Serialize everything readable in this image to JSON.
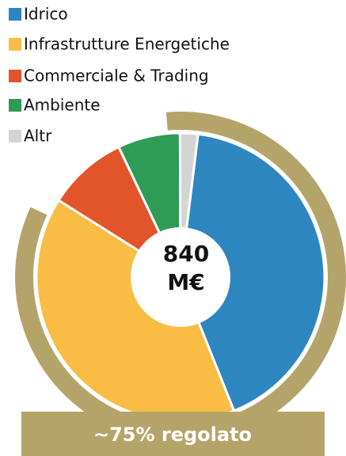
{
  "chart_data": {
    "type": "donut",
    "categories": [
      "Idrico",
      "Infrastrutture Energetiche",
      "Commerciale & Trading",
      "Ambiente",
      "Altr"
    ],
    "values": [
      42,
      40,
      9,
      7,
      2
    ],
    "colors": [
      "#2e86c1",
      "#f9bc45",
      "#e2552a",
      "#2e9b57",
      "#d4d4d4"
    ],
    "center_label": [
      "840",
      "M€"
    ],
    "annotation": "~75% regolato",
    "annotation_color": "#b5a46a"
  }
}
